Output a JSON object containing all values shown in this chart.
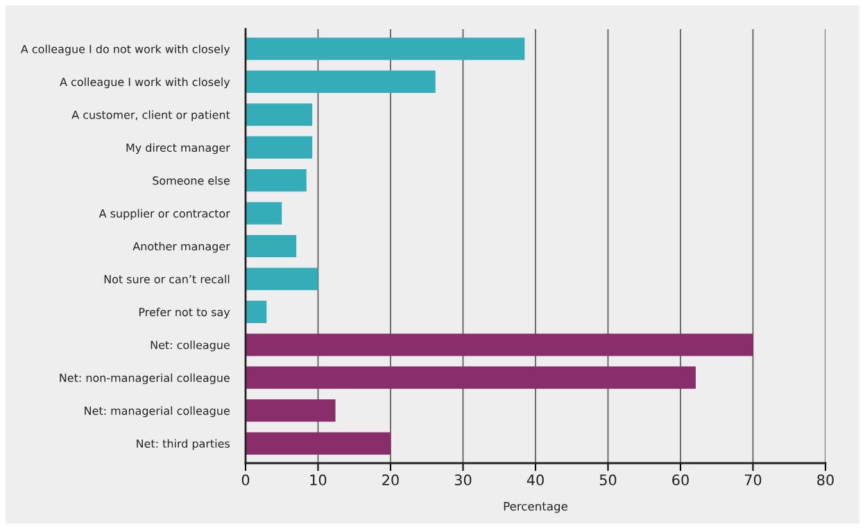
{
  "chart_data": {
    "type": "bar",
    "orientation": "horizontal",
    "xlabel": "Percentage",
    "categories": [
      "A colleague I do not work with closely",
      "A colleague I work with closely",
      "A customer, client or patient",
      "My direct manager",
      "Someone else",
      "A supplier or contractor",
      "Another manager",
      "Not sure or can’t recall",
      "Prefer not to say",
      "Net: colleague",
      "Net: non-managerial colleague",
      "Net: managerial colleague",
      "Net: third parties"
    ],
    "values": [
      38.5,
      26.2,
      9.2,
      9.2,
      8.4,
      5.0,
      7.0,
      10.0,
      2.9,
      70.0,
      62.1,
      12.4,
      20.0
    ],
    "colors": [
      "#35adb9",
      "#35adb9",
      "#35adb9",
      "#35adb9",
      "#35adb9",
      "#35adb9",
      "#35adb9",
      "#35adb9",
      "#35adb9",
      "#8a2e6b",
      "#8a2e6b",
      "#8a2e6b",
      "#8a2e6b"
    ],
    "xlim": [
      0,
      80
    ],
    "xticks": [
      0,
      10,
      20,
      30,
      40,
      50,
      60,
      70,
      80
    ],
    "grid": "x"
  }
}
